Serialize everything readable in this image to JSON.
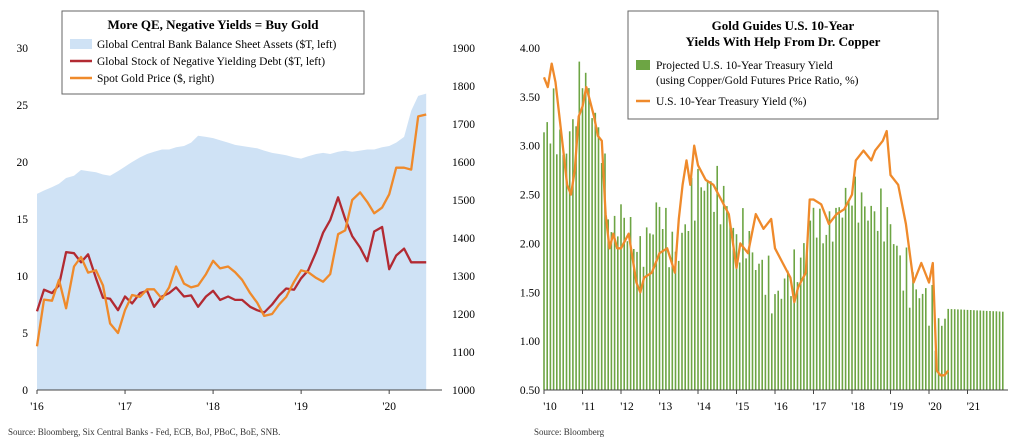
{
  "chart_data": [
    {
      "type": "area",
      "title": "More QE, Negative Yields = Buy Gold",
      "legend": [
        "Global Central Bank Balance Sheet Assets ($T, left)",
        "Global Stock of Negative Yielding Debt ($T, left)",
        "Spot Gold Price ($, right)"
      ],
      "legend_position": "top",
      "x_tick_labels": [
        "'16",
        "'17",
        "'18",
        "'19",
        "'20"
      ],
      "y_left_ticks": [
        "0",
        "5",
        "10",
        "15",
        "20",
        "25",
        "30"
      ],
      "y_right_ticks": [
        "1000",
        "1100",
        "1200",
        "1300",
        "1400",
        "1500",
        "1600",
        "1700",
        "1800",
        "1900"
      ],
      "ylim_left": [
        0,
        30
      ],
      "ylim_right": [
        1000,
        1900
      ],
      "xlim": [
        2016.0,
        2020.6
      ],
      "source": "Source: Bloomberg, Six Central Banks - Fed, ECB, BoJ, PBoC, BoE, SNB.",
      "series": [
        {
          "name": "Global Central Bank Balance Sheet Assets ($T, left)",
          "color": "#cfe2f5",
          "x": [
            2016.0,
            2016.08,
            2016.17,
            2016.25,
            2016.33,
            2016.42,
            2016.5,
            2016.58,
            2016.67,
            2016.75,
            2016.83,
            2016.92,
            2017.0,
            2017.08,
            2017.17,
            2017.25,
            2017.33,
            2017.42,
            2017.5,
            2017.58,
            2017.67,
            2017.75,
            2017.83,
            2017.92,
            2018.0,
            2018.08,
            2018.17,
            2018.25,
            2018.33,
            2018.42,
            2018.5,
            2018.58,
            2018.67,
            2018.75,
            2018.83,
            2018.92,
            2019.0,
            2019.08,
            2019.17,
            2019.25,
            2019.33,
            2019.42,
            2019.5,
            2019.58,
            2019.67,
            2019.75,
            2019.83,
            2019.92,
            2020.0,
            2020.08,
            2020.17,
            2020.25,
            2020.33,
            2020.42
          ],
          "values": [
            17.2,
            17.5,
            17.8,
            18.1,
            18.6,
            18.8,
            19.3,
            19.2,
            19.1,
            18.9,
            18.8,
            19.2,
            19.6,
            20.0,
            20.4,
            20.7,
            20.9,
            21.1,
            21.1,
            21.3,
            21.4,
            21.7,
            22.3,
            22.2,
            22.1,
            21.9,
            21.7,
            21.5,
            21.4,
            21.3,
            21.2,
            21.0,
            20.8,
            20.7,
            20.6,
            20.4,
            20.3,
            20.5,
            20.7,
            20.8,
            20.7,
            20.9,
            21.0,
            20.9,
            21.0,
            21.1,
            21.1,
            21.3,
            21.4,
            21.7,
            22.2,
            24.5,
            25.8,
            26.0
          ]
        },
        {
          "name": "Global Stock of Negative Yielding Debt ($T, left)",
          "color": "#b22a32",
          "x": [
            2016.0,
            2016.08,
            2016.17,
            2016.25,
            2016.33,
            2016.42,
            2016.5,
            2016.58,
            2016.67,
            2016.75,
            2016.83,
            2016.92,
            2017.0,
            2017.08,
            2017.17,
            2017.25,
            2017.33,
            2017.42,
            2017.5,
            2017.58,
            2017.67,
            2017.75,
            2017.83,
            2017.92,
            2018.0,
            2018.08,
            2018.17,
            2018.25,
            2018.33,
            2018.42,
            2018.5,
            2018.58,
            2018.67,
            2018.75,
            2018.83,
            2018.92,
            2019.0,
            2019.08,
            2019.17,
            2019.25,
            2019.33,
            2019.42,
            2019.5,
            2019.58,
            2019.67,
            2019.75,
            2019.83,
            2019.92,
            2020.0,
            2020.08,
            2020.17,
            2020.25,
            2020.33,
            2020.42
          ],
          "values": [
            6.9,
            8.8,
            8.5,
            9.2,
            12.1,
            12.0,
            11.2,
            11.9,
            9.8,
            8.1,
            8.0,
            7.0,
            8.2,
            7.6,
            8.5,
            8.7,
            7.3,
            8.2,
            8.5,
            9.0,
            8.2,
            8.3,
            7.3,
            8.2,
            8.7,
            7.9,
            8.2,
            7.9,
            7.9,
            7.3,
            7.0,
            6.8,
            7.5,
            8.3,
            8.9,
            8.8,
            9.8,
            10.5,
            12.1,
            13.8,
            14.9,
            16.9,
            15.0,
            13.5,
            12.5,
            11.3,
            13.9,
            14.3,
            10.6,
            11.8,
            12.4,
            11.2,
            11.2,
            11.2
          ]
        },
        {
          "name": "Spot Gold Price ($, right)",
          "color": "#ef8a2b",
          "x": [
            2016.0,
            2016.08,
            2016.17,
            2016.25,
            2016.33,
            2016.42,
            2016.5,
            2016.58,
            2016.67,
            2016.75,
            2016.83,
            2016.92,
            2017.0,
            2017.08,
            2017.17,
            2017.25,
            2017.33,
            2017.42,
            2017.5,
            2017.58,
            2017.67,
            2017.75,
            2017.83,
            2017.92,
            2018.0,
            2018.08,
            2018.17,
            2018.25,
            2018.33,
            2018.42,
            2018.5,
            2018.58,
            2018.67,
            2018.75,
            2018.83,
            2018.92,
            2019.0,
            2019.08,
            2019.17,
            2019.25,
            2019.33,
            2019.42,
            2019.5,
            2019.58,
            2019.67,
            2019.75,
            2019.83,
            2019.92,
            2020.0,
            2020.08,
            2020.17,
            2020.25,
            2020.33,
            2020.42
          ],
          "values": [
            1115,
            1238,
            1235,
            1290,
            1215,
            1325,
            1350,
            1309,
            1315,
            1275,
            1175,
            1150,
            1210,
            1250,
            1245,
            1265,
            1265,
            1240,
            1270,
            1325,
            1280,
            1270,
            1275,
            1305,
            1340,
            1320,
            1325,
            1310,
            1290,
            1255,
            1230,
            1195,
            1200,
            1225,
            1245,
            1285,
            1315,
            1310,
            1295,
            1285,
            1305,
            1410,
            1420,
            1500,
            1520,
            1495,
            1465,
            1480,
            1515,
            1585,
            1585,
            1580,
            1720,
            1725
          ]
        }
      ]
    },
    {
      "type": "bar",
      "title": "Gold Guides U.S. 10-Year Yields With Help From Dr. Copper",
      "legend": [
        "Projected U.S. 10-Year Treasury Yield (using Copper/Gold Futures Price Ratio, %)",
        "U.S. 10-Year Treasury Yield (%)"
      ],
      "legend_position": "top-right",
      "x_tick_labels": [
        "'10",
        "'11",
        "'12",
        "'13",
        "'14",
        "'15",
        "'16",
        "'17",
        "'18",
        "'19",
        "'20",
        "'21"
      ],
      "y_ticks": [
        "0.50",
        "1.00",
        "1.50",
        "2.00",
        "2.50",
        "3.00",
        "3.50",
        "4.00"
      ],
      "ylim": [
        0.5,
        4.0
      ],
      "xlim": [
        2010.0,
        2022.0
      ],
      "source": "Source: Bloomberg",
      "bar_series": {
        "name": "Projected U.S. 10-Year Treasury Yield (using Copper/Gold Futures Price Ratio, %)",
        "color": "#6da544",
        "x": [
          2010.0,
          2010.25,
          2010.5,
          2010.75,
          2011.0,
          2011.25,
          2011.5,
          2011.75,
          2012.0,
          2012.25,
          2012.5,
          2012.75,
          2013.0,
          2013.25,
          2013.5,
          2013.75,
          2014.0,
          2014.25,
          2014.5,
          2014.75,
          2015.0,
          2015.25,
          2015.5,
          2015.75,
          2016.0,
          2016.25,
          2016.5,
          2016.75,
          2017.0,
          2017.25,
          2017.5,
          2017.75,
          2018.0,
          2018.25,
          2018.5,
          2018.75,
          2019.0,
          2019.25,
          2019.5,
          2019.75,
          2020.0,
          2020.2,
          2020.35,
          2020.5,
          2022.0
        ],
        "values": [
          3.1,
          3.3,
          2.9,
          3.2,
          3.8,
          3.4,
          3.0,
          2.1,
          2.3,
          2.1,
          1.9,
          2.1,
          2.4,
          2.0,
          1.9,
          2.3,
          2.6,
          2.6,
          2.5,
          2.4,
          2.0,
          2.1,
          1.8,
          1.7,
          1.4,
          1.6,
          1.7,
          1.9,
          2.3,
          2.1,
          2.2,
          2.4,
          2.5,
          2.4,
          2.3,
          2.3,
          2.2,
          1.8,
          1.6,
          1.5,
          1.4,
          1.1,
          1.15,
          1.33,
          1.3
        ]
      },
      "line_series": {
        "name": "U.S. 10-Year Treasury Yield (%)",
        "color": "#ef8a2b",
        "x": [
          2010.0,
          2010.1,
          2010.2,
          2010.3,
          2010.4,
          2010.5,
          2010.6,
          2010.7,
          2010.8,
          2010.9,
          2011.0,
          2011.1,
          2011.2,
          2011.3,
          2011.4,
          2011.5,
          2011.6,
          2011.7,
          2011.8,
          2011.9,
          2012.0,
          2012.2,
          2012.4,
          2012.5,
          2012.6,
          2012.8,
          2013.0,
          2013.2,
          2013.4,
          2013.5,
          2013.6,
          2013.7,
          2013.8,
          2013.9,
          2014.0,
          2014.2,
          2014.4,
          2014.6,
          2014.8,
          2015.0,
          2015.1,
          2015.3,
          2015.5,
          2015.7,
          2015.9,
          2016.0,
          2016.2,
          2016.4,
          2016.5,
          2016.6,
          2016.8,
          2016.9,
          2017.0,
          2017.2,
          2017.4,
          2017.6,
          2017.8,
          2018.0,
          2018.1,
          2018.3,
          2018.5,
          2018.6,
          2018.8,
          2018.9,
          2019.0,
          2019.2,
          2019.4,
          2019.6,
          2019.8,
          2020.0,
          2020.1,
          2020.2,
          2020.3,
          2020.4,
          2020.5
        ],
        "values": [
          3.7,
          3.6,
          3.84,
          3.65,
          3.3,
          2.95,
          2.6,
          2.5,
          2.75,
          3.3,
          3.4,
          3.6,
          3.45,
          3.3,
          3.1,
          3.05,
          2.3,
          1.95,
          2.1,
          1.95,
          1.95,
          2.1,
          1.6,
          1.5,
          1.65,
          1.7,
          1.9,
          1.95,
          1.7,
          2.25,
          2.6,
          2.85,
          2.6,
          3.0,
          2.8,
          2.65,
          2.6,
          2.45,
          2.3,
          1.75,
          2.0,
          1.9,
          2.3,
          2.15,
          2.25,
          1.95,
          1.8,
          1.65,
          1.4,
          1.55,
          1.7,
          2.45,
          2.45,
          2.4,
          2.2,
          2.3,
          2.35,
          2.5,
          2.85,
          2.95,
          2.85,
          2.95,
          3.05,
          3.15,
          2.7,
          2.6,
          2.2,
          1.6,
          1.8,
          1.6,
          1.8,
          0.7,
          0.65,
          0.65,
          0.7
        ]
      }
    }
  ]
}
